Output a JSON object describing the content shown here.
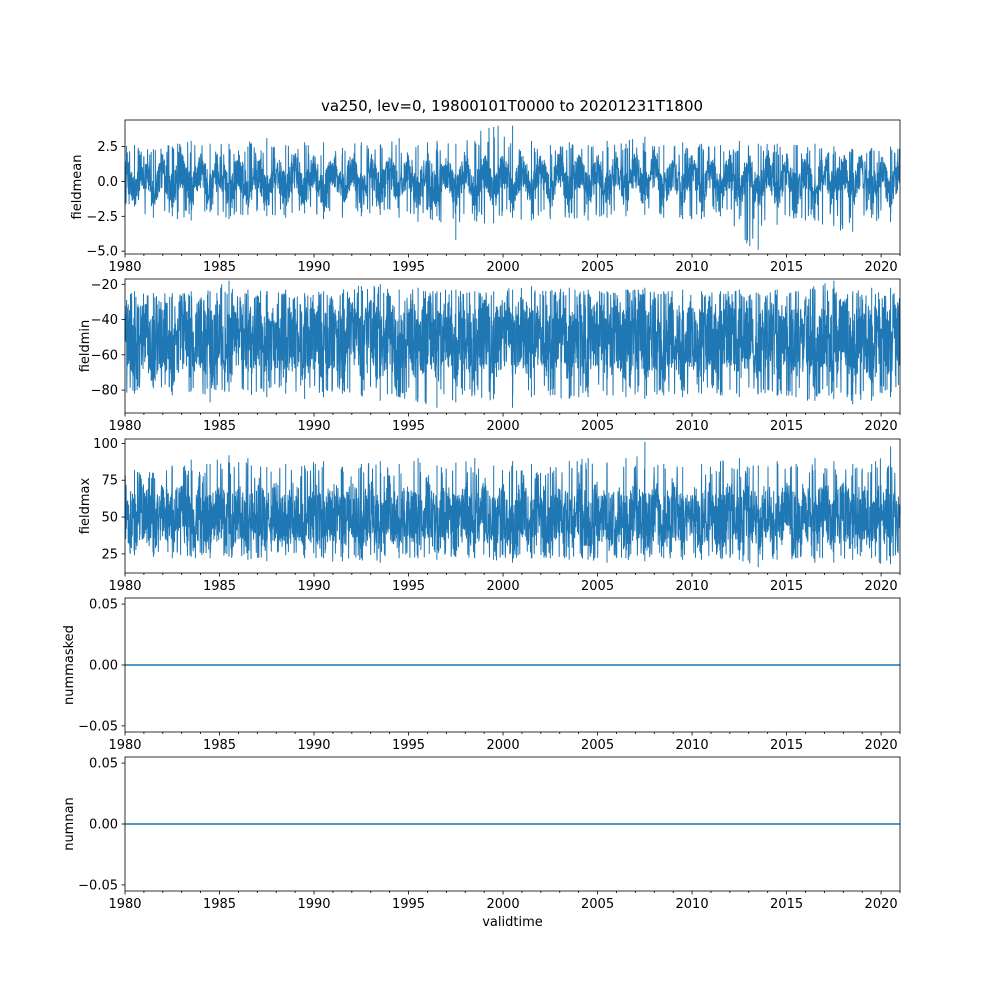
{
  "title": "va250, lev=0, 19800101T0000 to 20201231T1800",
  "colors": {
    "series": "#1f77b4",
    "axes": "#000000",
    "background": "#ffffff"
  },
  "chart_data": [
    {
      "type": "line",
      "name": "fieldmean",
      "title": "va250, lev=0, 19800101T0000 to 20201231T1800",
      "xlabel": "",
      "ylabel": "fieldmean",
      "xlim": [
        1980,
        2021
      ],
      "ylim": [
        -5.2,
        4.4
      ],
      "xticks": [
        1980,
        1985,
        1990,
        1995,
        2000,
        2005,
        2010,
        2015,
        2020
      ],
      "xtick_labels": [
        "1980",
        "1985",
        "1990",
        "1995",
        "2000",
        "2005",
        "2010",
        "2015",
        "2020"
      ],
      "yticks": [
        -5.0,
        -2.5,
        0.0,
        2.5
      ],
      "ytick_labels": [
        "−5.0",
        "−2.5",
        "0.0",
        "2.5"
      ],
      "series": [
        {
          "name": "fieldmean",
          "kind": "noisy",
          "annual_envelope": [
            [
              1980,
              -1.8,
              2.6
            ],
            [
              1981,
              -2.6,
              2.3
            ],
            [
              1982,
              -2.5,
              2.5
            ],
            [
              1983,
              -2.8,
              2.9
            ],
            [
              1984,
              -2.2,
              2.7
            ],
            [
              1985,
              -2.7,
              2.7
            ],
            [
              1986,
              -2.4,
              2.5
            ],
            [
              1987,
              -2.5,
              3.1
            ],
            [
              1988,
              -2.6,
              2.6
            ],
            [
              1989,
              -2.3,
              2.8
            ],
            [
              1990,
              -2.7,
              2.8
            ],
            [
              1991,
              -2.6,
              2.4
            ],
            [
              1992,
              -2.5,
              2.8
            ],
            [
              1993,
              -2.4,
              2.6
            ],
            [
              1994,
              -2.6,
              3.1
            ],
            [
              1995,
              -2.9,
              2.6
            ],
            [
              1996,
              -2.5,
              2.9
            ],
            [
              1997,
              -4.2,
              2.7
            ],
            [
              1998,
              -2.8,
              2.9
            ],
            [
              1999,
              -3.0,
              3.9
            ],
            [
              2000,
              -2.6,
              4.0
            ],
            [
              2001,
              -2.8,
              2.9
            ],
            [
              2002,
              -2.7,
              2.6
            ],
            [
              2003,
              -2.6,
              2.8
            ],
            [
              2004,
              -2.8,
              2.6
            ],
            [
              2005,
              -2.6,
              2.9
            ],
            [
              2006,
              -2.5,
              2.7
            ],
            [
              2007,
              -2.4,
              3.2
            ],
            [
              2008,
              -2.6,
              2.6
            ],
            [
              2009,
              -2.7,
              2.8
            ],
            [
              2010,
              -2.7,
              2.7
            ],
            [
              2011,
              -2.5,
              2.6
            ],
            [
              2012,
              -2.7,
              2.9
            ],
            [
              2013,
              -4.9,
              2.7
            ],
            [
              2014,
              -3.1,
              2.7
            ],
            [
              2015,
              -2.6,
              2.6
            ],
            [
              2016,
              -2.8,
              2.7
            ],
            [
              2017,
              -3.2,
              2.5
            ],
            [
              2018,
              -3.6,
              2.3
            ],
            [
              2019,
              -2.6,
              2.4
            ],
            [
              2020,
              -2.9,
              2.5
            ],
            [
              2021,
              -2.4,
              2.5
            ]
          ],
          "core_band": [
            -1.2,
            1.3
          ],
          "seasonal_amplitude": 0.7
        }
      ]
    },
    {
      "type": "line",
      "name": "fieldmin",
      "xlabel": "",
      "ylabel": "fieldmin",
      "xlim": [
        1980,
        2021
      ],
      "ylim": [
        -93,
        -17
      ],
      "xticks": [
        1980,
        1985,
        1990,
        1995,
        2000,
        2005,
        2010,
        2015,
        2020
      ],
      "xtick_labels": [
        "1980",
        "1985",
        "1990",
        "1995",
        "2000",
        "2005",
        "2010",
        "2015",
        "2020"
      ],
      "yticks": [
        -80,
        -60,
        -40,
        -20
      ],
      "ytick_labels": [
        "−80",
        "−60",
        "−40",
        "−20"
      ],
      "series": [
        {
          "name": "fieldmin",
          "kind": "noisy",
          "annual_envelope": [
            [
              1980,
              -82,
              -24
            ],
            [
              1981,
              -79,
              -25
            ],
            [
              1982,
              -83,
              -25
            ],
            [
              1983,
              -80,
              -24
            ],
            [
              1984,
              -87,
              -24
            ],
            [
              1985,
              -81,
              -18
            ],
            [
              1986,
              -80,
              -23
            ],
            [
              1987,
              -84,
              -24
            ],
            [
              1988,
              -82,
              -23
            ],
            [
              1989,
              -85,
              -25
            ],
            [
              1990,
              -84,
              -24
            ],
            [
              1991,
              -82,
              -25
            ],
            [
              1992,
              -83,
              -21
            ],
            [
              1993,
              -86,
              -20
            ],
            [
              1994,
              -84,
              -23
            ],
            [
              1995,
              -85,
              -22
            ],
            [
              1996,
              -90,
              -24
            ],
            [
              1997,
              -87,
              -23
            ],
            [
              1998,
              -83,
              -24
            ],
            [
              1999,
              -85,
              -24
            ],
            [
              2000,
              -90,
              -23
            ],
            [
              2001,
              -84,
              -21
            ],
            [
              2002,
              -83,
              -24
            ],
            [
              2003,
              -85,
              -22
            ],
            [
              2004,
              -84,
              -23
            ],
            [
              2005,
              -82,
              -24
            ],
            [
              2006,
              -84,
              -23
            ],
            [
              2007,
              -85,
              -22
            ],
            [
              2008,
              -83,
              -24
            ],
            [
              2009,
              -84,
              -23
            ],
            [
              2010,
              -82,
              -24
            ],
            [
              2011,
              -83,
              -24
            ],
            [
              2012,
              -84,
              -23
            ],
            [
              2013,
              -82,
              -25
            ],
            [
              2014,
              -83,
              -23
            ],
            [
              2015,
              -84,
              -24
            ],
            [
              2016,
              -86,
              -23
            ],
            [
              2017,
              -85,
              -18
            ],
            [
              2018,
              -88,
              -24
            ],
            [
              2019,
              -86,
              -22
            ],
            [
              2020,
              -84,
              -22
            ],
            [
              2021,
              -80,
              -26
            ]
          ],
          "core_band": [
            -72,
            -30
          ],
          "seasonal_amplitude": 4
        }
      ]
    },
    {
      "type": "line",
      "name": "fieldmax",
      "xlabel": "",
      "ylabel": "fieldmax",
      "xlim": [
        1980,
        2021
      ],
      "ylim": [
        12,
        103
      ],
      "xticks": [
        1980,
        1985,
        1990,
        1995,
        2000,
        2005,
        2010,
        2015,
        2020
      ],
      "xtick_labels": [
        "1980",
        "1985",
        "1990",
        "1995",
        "2000",
        "2005",
        "2010",
        "2015",
        "2020"
      ],
      "yticks": [
        25,
        50,
        75,
        100
      ],
      "ytick_labels": [
        "25",
        "50",
        "75",
        "100"
      ],
      "series": [
        {
          "name": "fieldmax",
          "kind": "noisy",
          "annual_envelope": [
            [
              1980,
              24,
              82
            ],
            [
              1981,
              23,
              80
            ],
            [
              1982,
              22,
              84
            ],
            [
              1983,
              23,
              89
            ],
            [
              1984,
              22,
              86
            ],
            [
              1985,
              23,
              92
            ],
            [
              1986,
              21,
              90
            ],
            [
              1987,
              20,
              84
            ],
            [
              1988,
              24,
              86
            ],
            [
              1989,
              22,
              85
            ],
            [
              1990,
              22,
              88
            ],
            [
              1991,
              20,
              84
            ],
            [
              1992,
              22,
              86
            ],
            [
              1993,
              19,
              88
            ],
            [
              1994,
              22,
              86
            ],
            [
              1995,
              22,
              90
            ],
            [
              1996,
              21,
              85
            ],
            [
              1997,
              23,
              87
            ],
            [
              1998,
              22,
              90
            ],
            [
              1999,
              21,
              85
            ],
            [
              2000,
              19,
              88
            ],
            [
              2001,
              22,
              86
            ],
            [
              2002,
              22,
              84
            ],
            [
              2003,
              21,
              88
            ],
            [
              2004,
              21,
              90
            ],
            [
              2005,
              19,
              86
            ],
            [
              2006,
              22,
              90
            ],
            [
              2007,
              20,
              101
            ],
            [
              2008,
              22,
              86
            ],
            [
              2009,
              21,
              84
            ],
            [
              2010,
              21,
              86
            ],
            [
              2011,
              22,
              88
            ],
            [
              2012,
              21,
              90
            ],
            [
              2013,
              16,
              85
            ],
            [
              2014,
              21,
              88
            ],
            [
              2015,
              22,
              86
            ],
            [
              2016,
              19,
              90
            ],
            [
              2017,
              19,
              88
            ],
            [
              2018,
              21,
              86
            ],
            [
              2019,
              22,
              86
            ],
            [
              2020,
              18,
              98
            ],
            [
              2021,
              25,
              84
            ]
          ],
          "core_band": [
            30,
            70
          ],
          "seasonal_amplitude": 4
        }
      ]
    },
    {
      "type": "line",
      "name": "nummasked",
      "xlabel": "",
      "ylabel": "nummasked",
      "xlim": [
        1980,
        2021
      ],
      "ylim": [
        -0.055,
        0.055
      ],
      "xticks": [
        1980,
        1985,
        1990,
        1995,
        2000,
        2005,
        2010,
        2015,
        2020
      ],
      "xtick_labels": [
        "1980",
        "1985",
        "1990",
        "1995",
        "2000",
        "2005",
        "2010",
        "2015",
        "2020"
      ],
      "yticks": [
        -0.05,
        0.0,
        0.05
      ],
      "ytick_labels": [
        "−0.05",
        "0.00",
        "0.05"
      ],
      "series": [
        {
          "name": "nummasked",
          "kind": "constant",
          "x": [
            1980,
            2021
          ],
          "y": [
            0,
            0
          ]
        }
      ]
    },
    {
      "type": "line",
      "name": "numnan",
      "xlabel": "validtime",
      "ylabel": "numnan",
      "xlim": [
        1980,
        2021
      ],
      "ylim": [
        -0.055,
        0.055
      ],
      "xticks": [
        1980,
        1985,
        1990,
        1995,
        2000,
        2005,
        2010,
        2015,
        2020
      ],
      "xtick_labels": [
        "1980",
        "1985",
        "1990",
        "1995",
        "2000",
        "2005",
        "2010",
        "2015",
        "2020"
      ],
      "yticks": [
        -0.05,
        0.0,
        0.05
      ],
      "ytick_labels": [
        "−0.05",
        "0.00",
        "0.05"
      ],
      "series": [
        {
          "name": "numnan",
          "kind": "constant",
          "x": [
            1980,
            2021
          ],
          "y": [
            0,
            0
          ]
        }
      ]
    }
  ]
}
